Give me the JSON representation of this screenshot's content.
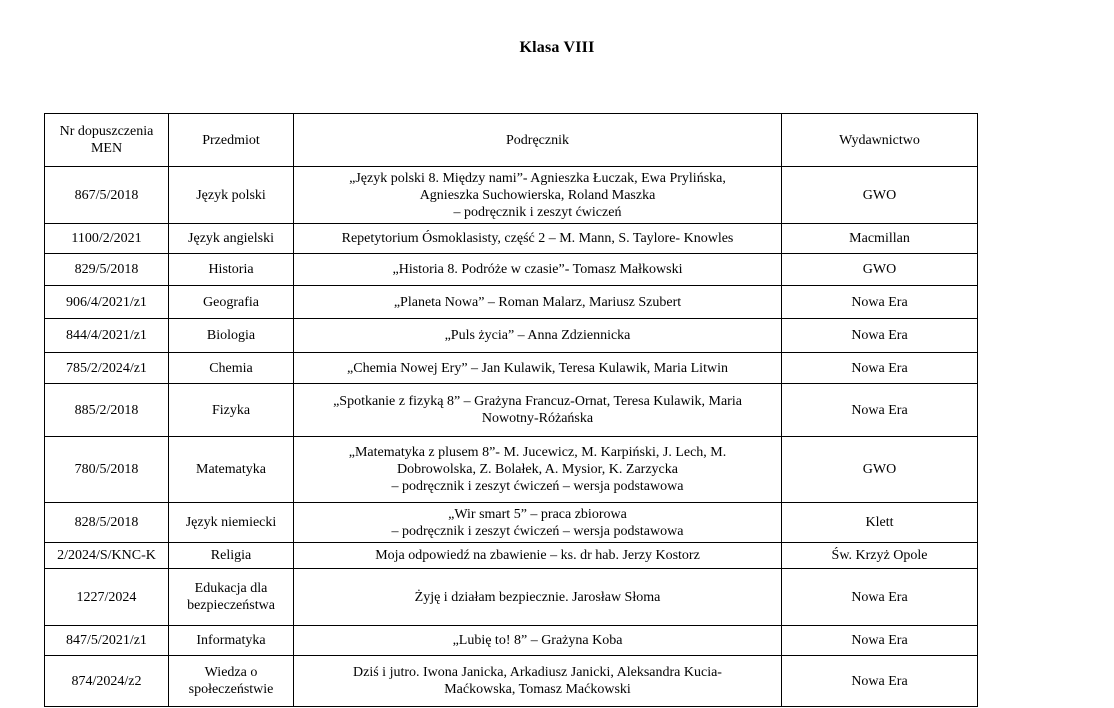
{
  "page": {
    "title": "Klasa VIII"
  },
  "table": {
    "headers": [
      "Nr dopuszczenia\nMEN",
      "Przedmiot",
      "Podręcznik",
      "Wydawnictwo"
    ],
    "rows": [
      [
        "867/5/2018",
        "Język polski",
        "„Język polski 8. Między nami”- Agnieszka Łuczak, Ewa Prylińska,\nAgnieszka Suchowierska, Roland Maszka\n– podręcznik i zeszyt ćwiczeń",
        "GWO"
      ],
      [
        "1100/2/2021",
        "Język angielski",
        "Repetytorium Ósmoklasisty, część 2 – M. Mann, S. Taylore- Knowles",
        "Macmillan"
      ],
      [
        "829/5/2018",
        "Historia",
        "„Historia 8. Podróże w czasie”- Tomasz Małkowski",
        "GWO"
      ],
      [
        "906/4/2021/z1",
        "Geografia",
        "„Planeta Nowa” – Roman Malarz, Mariusz Szubert",
        "Nowa Era"
      ],
      [
        "844/4/2021/z1",
        "Biologia",
        "„Puls życia” – Anna Zdziennicka",
        "Nowa Era"
      ],
      [
        "785/2/2024/z1",
        "Chemia",
        "„Chemia Nowej Ery” – Jan Kulawik, Teresa Kulawik, Maria Litwin",
        "Nowa Era"
      ],
      [
        "885/2/2018",
        "Fizyka",
        "„Spotkanie z fizyką 8” – Grażyna Francuz-Ornat, Teresa Kulawik, Maria\nNowotny-Różańska",
        "Nowa Era"
      ],
      [
        "780/5/2018",
        "Matematyka",
        "„Matematyka z plusem 8”- M. Jucewicz, M. Karpiński, J. Lech, M.\nDobrowolska, Z. Bolałek, A. Mysior, K. Zarzycka\n– podręcznik i zeszyt ćwiczeń – wersja podstawowa",
        "GWO"
      ],
      [
        "828/5/2018",
        "Język niemiecki",
        "„Wir smart 5” – praca zbiorowa\n– podręcznik i zeszyt ćwiczeń – wersja podstawowa",
        "Klett"
      ],
      [
        "2/2024/S/KNC-K",
        "Religia",
        "Moja odpowiedź na zbawienie – ks. dr hab. Jerzy Kostorz",
        "Św. Krzyż Opole"
      ],
      [
        "1227/2024",
        "Edukacja dla\nbezpieczeństwa",
        "Żyję i działam bezpiecznie. Jarosław Słoma",
        "Nowa Era"
      ],
      [
        "847/5/2021/z1",
        "Informatyka",
        "„Lubię to! 8” – Grażyna Koba",
        "Nowa Era"
      ],
      [
        "874/2024/z2",
        "Wiedza o\nspołeczeństwie",
        "Dziś i jutro. Iwona Janicka, Arkadiusz Janicki, Aleksandra Kucia-\nMaćkowska, Tomasz Maćkowski",
        "Nowa Era"
      ]
    ]
  }
}
